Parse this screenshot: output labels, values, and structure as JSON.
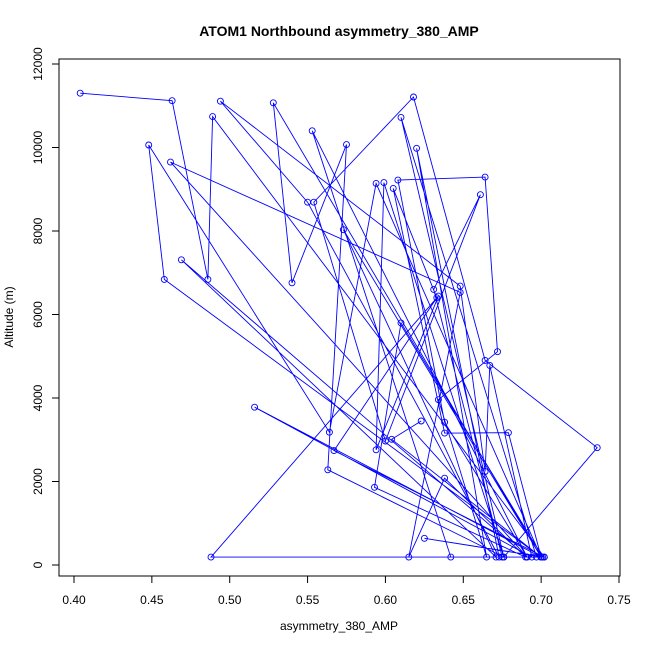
{
  "chart_data": {
    "type": "line",
    "title": "ATOM1 Northbound asymmetry_380_AMP",
    "xlabel": "asymmetry_380_AMP",
    "ylabel": "Altitude (m)",
    "xlim": [
      0.4,
      0.75
    ],
    "ylim": [
      0,
      12000
    ],
    "x_ticks": [
      "0.40",
      "0.45",
      "0.50",
      "0.55",
      "0.60",
      "0.65",
      "0.70",
      "0.75"
    ],
    "y_ticks": [
      "0",
      "2000",
      "4000",
      "6000",
      "8000",
      "10000",
      "12000"
    ],
    "grid": false,
    "colors": {
      "series": "#0000ff",
      "axis": "#000000"
    },
    "series": [
      {
        "marker": "open-circle",
        "points": [
          [
            0.404,
            11300
          ],
          [
            0.463,
            11120
          ],
          [
            0.486,
            6840
          ],
          [
            0.489,
            10740
          ],
          [
            0.702,
            190
          ],
          [
            0.488,
            190
          ],
          [
            0.634,
            6440
          ],
          [
            0.594,
            2760
          ],
          [
            0.599,
            9160
          ],
          [
            0.676,
            190
          ],
          [
            0.736,
            2810
          ],
          [
            0.664,
            4900
          ],
          [
            0.618,
            11210
          ],
          [
            0.554,
            8690
          ],
          [
            0.6,
            2970
          ],
          [
            0.661,
            8870
          ],
          [
            0.631,
            6600
          ],
          [
            0.675,
            190
          ],
          [
            0.697,
            190
          ],
          [
            0.61,
            10720
          ],
          [
            0.676,
            190
          ],
          [
            0.563,
            2280
          ],
          [
            0.575,
            10070
          ],
          [
            0.54,
            6760
          ],
          [
            0.528,
            11070
          ],
          [
            0.7,
            190
          ],
          [
            0.594,
            9140
          ],
          [
            0.564,
            3180
          ],
          [
            0.448,
            10060
          ],
          [
            0.458,
            6840
          ],
          [
            0.7,
            190
          ],
          [
            0.642,
            190
          ],
          [
            0.553,
            10400
          ],
          [
            0.691,
            190
          ],
          [
            0.638,
            3420
          ],
          [
            0.608,
            9220
          ],
          [
            0.664,
            9290
          ],
          [
            0.672,
            5110
          ],
          [
            0.634,
            3960
          ],
          [
            0.665,
            190
          ],
          [
            0.62,
            9980
          ],
          [
            0.673,
            190
          ],
          [
            0.55,
            8690
          ],
          [
            0.494,
            11110
          ],
          [
            0.648,
            6680
          ],
          [
            0.664,
            2240
          ],
          [
            0.667,
            4780
          ],
          [
            0.694,
            190
          ],
          [
            0.516,
            3780
          ],
          [
            0.7,
            190
          ],
          [
            0.679,
            3170
          ],
          [
            0.638,
            3160
          ],
          [
            0.605,
            9020
          ],
          [
            0.633,
            6400
          ],
          [
            0.567,
            2740
          ],
          [
            0.702,
            190
          ],
          [
            0.625,
            640
          ],
          [
            0.701,
            190
          ],
          [
            0.61,
            5800
          ],
          [
            0.593,
            1860
          ],
          [
            0.69,
            190
          ],
          [
            0.638,
            2080
          ],
          [
            0.615,
            190
          ],
          [
            0.648,
            6530
          ],
          [
            0.462,
            9650
          ],
          [
            0.691,
            190
          ],
          [
            0.469,
            7310
          ],
          [
            0.671,
            190
          ],
          [
            0.573,
            8030
          ],
          [
            0.7,
            190
          ],
          [
            0.604,
            3010
          ],
          [
            0.623,
            3450
          ]
        ]
      }
    ]
  }
}
